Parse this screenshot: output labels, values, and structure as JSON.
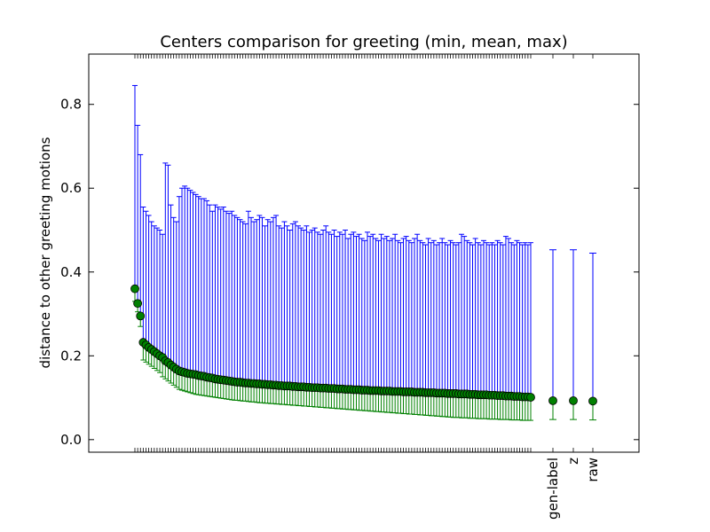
{
  "chart_data": {
    "type": "scatter",
    "title": "Centers comparison for greeting (min, mean, max)",
    "xlabel": "",
    "ylabel": "distance to other greeting motions",
    "ylim": [
      -0.03,
      0.92
    ],
    "yticks": [
      "0.0",
      "0.2",
      "0.4",
      "0.6",
      "0.8"
    ],
    "grid": false,
    "legend": "none",
    "colors": {
      "marker_fill": "#008000",
      "marker_edge": "#000000",
      "upper_error": "#0000ff",
      "lower_error": "#008000"
    },
    "categories": [
      "gen-label",
      "z",
      "raw"
    ],
    "unlabeled_points": {
      "count": 144,
      "mean": [
        0.36,
        0.325,
        0.295,
        0.232,
        0.226,
        0.22,
        0.215,
        0.21,
        0.205,
        0.2,
        0.196,
        0.188,
        0.184,
        0.178,
        0.173,
        0.168,
        0.164,
        0.162,
        0.16,
        0.158,
        0.157,
        0.156,
        0.155,
        0.153,
        0.152,
        0.151,
        0.149,
        0.148,
        0.147,
        0.145,
        0.144,
        0.143,
        0.142,
        0.141,
        0.14,
        0.139,
        0.138,
        0.137,
        0.137,
        0.136,
        0.135,
        0.135,
        0.134,
        0.134,
        0.133,
        0.133,
        0.132,
        0.132,
        0.131,
        0.131,
        0.13,
        0.13,
        0.129,
        0.129,
        0.128,
        0.128,
        0.128,
        0.127,
        0.127,
        0.126,
        0.126,
        0.126,
        0.125,
        0.125,
        0.124,
        0.124,
        0.124,
        0.123,
        0.123,
        0.123,
        0.122,
        0.122,
        0.122,
        0.121,
        0.121,
        0.121,
        0.12,
        0.12,
        0.12,
        0.119,
        0.119,
        0.119,
        0.118,
        0.118,
        0.118,
        0.117,
        0.117,
        0.117,
        0.117,
        0.116,
        0.116,
        0.116,
        0.116,
        0.115,
        0.115,
        0.115,
        0.115,
        0.114,
        0.114,
        0.114,
        0.114,
        0.113,
        0.113,
        0.113,
        0.113,
        0.112,
        0.112,
        0.112,
        0.112,
        0.111,
        0.111,
        0.111,
        0.111,
        0.11,
        0.11,
        0.11,
        0.11,
        0.109,
        0.109,
        0.109,
        0.109,
        0.108,
        0.108,
        0.108,
        0.107,
        0.107,
        0.107,
        0.107,
        0.106,
        0.106,
        0.106,
        0.105,
        0.105,
        0.105,
        0.104,
        0.104,
        0.104,
        0.103,
        0.103,
        0.103,
        0.102,
        0.102,
        0.102,
        0.101
      ],
      "max": [
        0.845,
        0.75,
        0.68,
        0.555,
        0.545,
        0.535,
        0.52,
        0.51,
        0.505,
        0.5,
        0.49,
        0.66,
        0.655,
        0.56,
        0.53,
        0.52,
        0.58,
        0.6,
        0.605,
        0.6,
        0.595,
        0.59,
        0.585,
        0.58,
        0.575,
        0.575,
        0.57,
        0.56,
        0.545,
        0.56,
        0.555,
        0.55,
        0.555,
        0.545,
        0.54,
        0.545,
        0.535,
        0.53,
        0.525,
        0.52,
        0.515,
        0.545,
        0.53,
        0.52,
        0.525,
        0.535,
        0.53,
        0.51,
        0.525,
        0.52,
        0.53,
        0.535,
        0.51,
        0.505,
        0.52,
        0.51,
        0.5,
        0.515,
        0.52,
        0.51,
        0.505,
        0.5,
        0.51,
        0.495,
        0.5,
        0.505,
        0.495,
        0.49,
        0.5,
        0.51,
        0.495,
        0.49,
        0.5,
        0.485,
        0.495,
        0.49,
        0.5,
        0.48,
        0.49,
        0.495,
        0.485,
        0.49,
        0.48,
        0.475,
        0.495,
        0.485,
        0.49,
        0.48,
        0.475,
        0.49,
        0.48,
        0.485,
        0.475,
        0.48,
        0.49,
        0.475,
        0.47,
        0.48,
        0.485,
        0.475,
        0.47,
        0.48,
        0.49,
        0.475,
        0.47,
        0.465,
        0.48,
        0.47,
        0.475,
        0.465,
        0.47,
        0.48,
        0.47,
        0.465,
        0.475,
        0.47,
        0.465,
        0.47,
        0.49,
        0.485,
        0.475,
        0.47,
        0.465,
        0.48,
        0.47,
        0.465,
        0.475,
        0.47,
        0.465,
        0.47,
        0.465,
        0.475,
        0.47,
        0.465,
        0.485,
        0.48,
        0.47,
        0.465,
        0.475,
        0.47,
        0.465,
        0.47,
        0.465,
        0.47
      ],
      "min": [
        0.33,
        0.305,
        0.27,
        0.19,
        0.185,
        0.18,
        0.175,
        0.17,
        0.165,
        0.16,
        0.15,
        0.145,
        0.14,
        0.135,
        0.13,
        0.125,
        0.12,
        0.118,
        0.116,
        0.114,
        0.112,
        0.11,
        0.108,
        0.107,
        0.106,
        0.105,
        0.104,
        0.103,
        0.102,
        0.101,
        0.1,
        0.099,
        0.098,
        0.097,
        0.096,
        0.095,
        0.094,
        0.094,
        0.093,
        0.092,
        0.092,
        0.091,
        0.09,
        0.09,
        0.089,
        0.088,
        0.088,
        0.087,
        0.087,
        0.086,
        0.086,
        0.085,
        0.085,
        0.084,
        0.084,
        0.083,
        0.083,
        0.082,
        0.082,
        0.081,
        0.081,
        0.08,
        0.08,
        0.079,
        0.079,
        0.078,
        0.078,
        0.077,
        0.077,
        0.076,
        0.076,
        0.075,
        0.075,
        0.074,
        0.074,
        0.073,
        0.073,
        0.072,
        0.072,
        0.071,
        0.071,
        0.07,
        0.07,
        0.069,
        0.069,
        0.068,
        0.068,
        0.067,
        0.067,
        0.066,
        0.066,
        0.065,
        0.065,
        0.064,
        0.064,
        0.063,
        0.063,
        0.062,
        0.062,
        0.061,
        0.061,
        0.06,
        0.06,
        0.059,
        0.059,
        0.058,
        0.058,
        0.057,
        0.057,
        0.056,
        0.056,
        0.055,
        0.055,
        0.054,
        0.054,
        0.053,
        0.053,
        0.053,
        0.052,
        0.052,
        0.052,
        0.051,
        0.051,
        0.051,
        0.05,
        0.05,
        0.05,
        0.05,
        0.049,
        0.049,
        0.049,
        0.049,
        0.048,
        0.048,
        0.048,
        0.048,
        0.047,
        0.047,
        0.047,
        0.047,
        0.046,
        0.046,
        0.046,
        0.046
      ]
    },
    "labeled_points": [
      {
        "label": "gen-label",
        "mean": 0.093,
        "min": 0.048,
        "max": 0.453
      },
      {
        "label": "z",
        "mean": 0.093,
        "min": 0.048,
        "max": 0.453
      },
      {
        "label": "raw",
        "mean": 0.092,
        "min": 0.047,
        "max": 0.445
      }
    ]
  }
}
